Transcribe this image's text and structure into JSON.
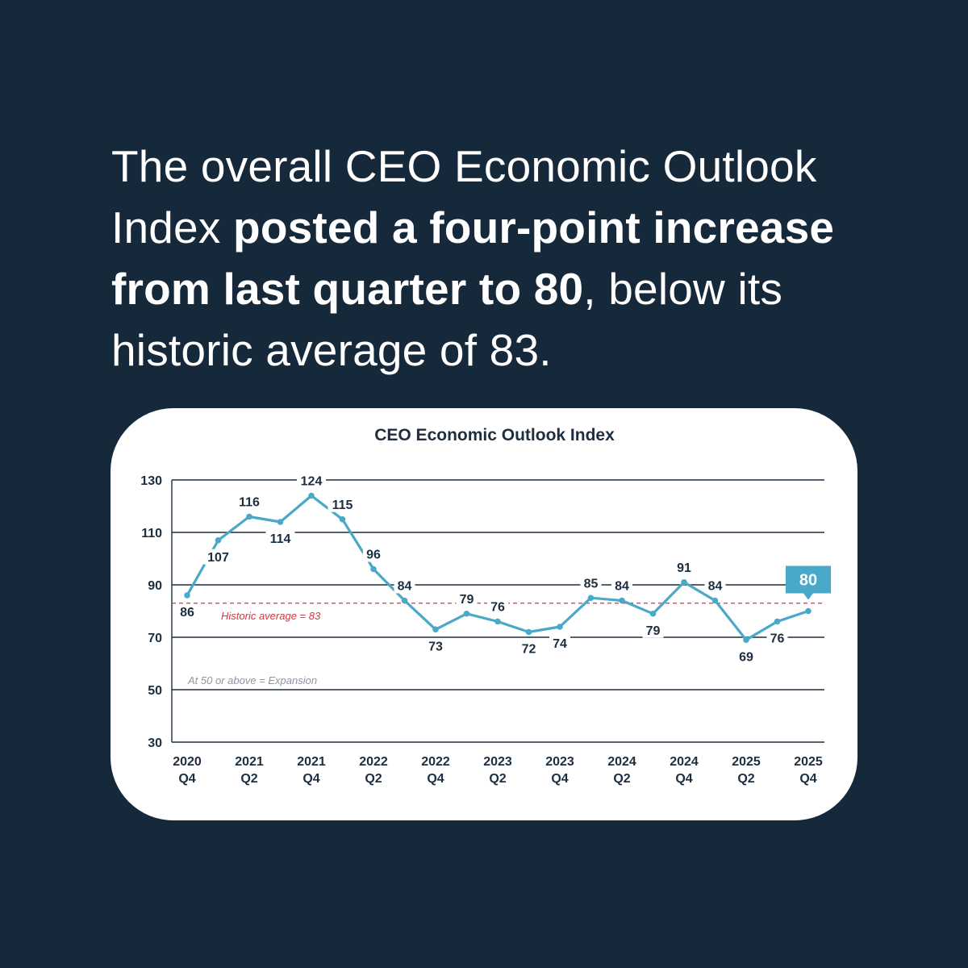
{
  "headline": {
    "part1": "The overall CEO Economic Outlook Index ",
    "bold": "posted a four-point increase from last quarter to 80",
    "part2": ", below its historic average of 83."
  },
  "colors": {
    "background": "#16293b",
    "card": "#ffffff",
    "line": "#4aa8c8",
    "text": "#1c2e40",
    "average_line": "#e0323c",
    "expansion_note": "#8a96a3",
    "callout": "#4aa8c8"
  },
  "chart_data": {
    "type": "line",
    "title": "CEO Economic Outlook Index",
    "ylim": [
      30,
      130
    ],
    "yticks": [
      30,
      50,
      70,
      90,
      110,
      130
    ],
    "grid": true,
    "x": [
      "2020 Q4",
      "2021 Q1",
      "2021 Q2",
      "2021 Q3",
      "2021 Q4",
      "2022 Q1",
      "2022 Q2",
      "2022 Q3",
      "2022 Q4",
      "2023 Q1",
      "2023 Q2",
      "2023 Q3",
      "2023 Q4",
      "2024 Q1",
      "2024 Q2",
      "2024 Q3",
      "2024 Q4",
      "2025 Q1",
      "2025 Q2",
      "2025 Q3",
      "2025 Q4"
    ],
    "values": [
      86,
      107,
      116,
      114,
      124,
      115,
      96,
      84,
      73,
      79,
      76,
      72,
      74,
      85,
      84,
      79,
      91,
      84,
      69,
      76,
      80
    ],
    "label_positions": [
      "below",
      "below",
      "above",
      "below",
      "above",
      "above",
      "above",
      "above",
      "below",
      "above",
      "above",
      "below",
      "below",
      "above",
      "above",
      "below",
      "above",
      "above",
      "below",
      "below",
      "callout"
    ],
    "xtick_labels": [
      {
        "index": 0,
        "year": "2020",
        "quarter": "Q4"
      },
      {
        "index": 2,
        "year": "2021",
        "quarter": "Q2"
      },
      {
        "index": 4,
        "year": "2021",
        "quarter": "Q4"
      },
      {
        "index": 6,
        "year": "2022",
        "quarter": "Q2"
      },
      {
        "index": 8,
        "year": "2022",
        "quarter": "Q4"
      },
      {
        "index": 10,
        "year": "2023",
        "quarter": "Q2"
      },
      {
        "index": 12,
        "year": "2023",
        "quarter": "Q4"
      },
      {
        "index": 14,
        "year": "2024",
        "quarter": "Q2"
      },
      {
        "index": 16,
        "year": "2024",
        "quarter": "Q4"
      },
      {
        "index": 18,
        "year": "2025",
        "quarter": "Q2"
      },
      {
        "index": 20,
        "year": "2025",
        "quarter": "Q4"
      }
    ],
    "reference_lines": [
      {
        "value": 83,
        "label": "Historic average = 83",
        "style": "dashed",
        "color": "#e0323c"
      }
    ],
    "annotations": [
      {
        "text": "At 50 or above = Expansion",
        "value": 50
      }
    ],
    "callout": {
      "index": 20,
      "text": "80"
    }
  }
}
